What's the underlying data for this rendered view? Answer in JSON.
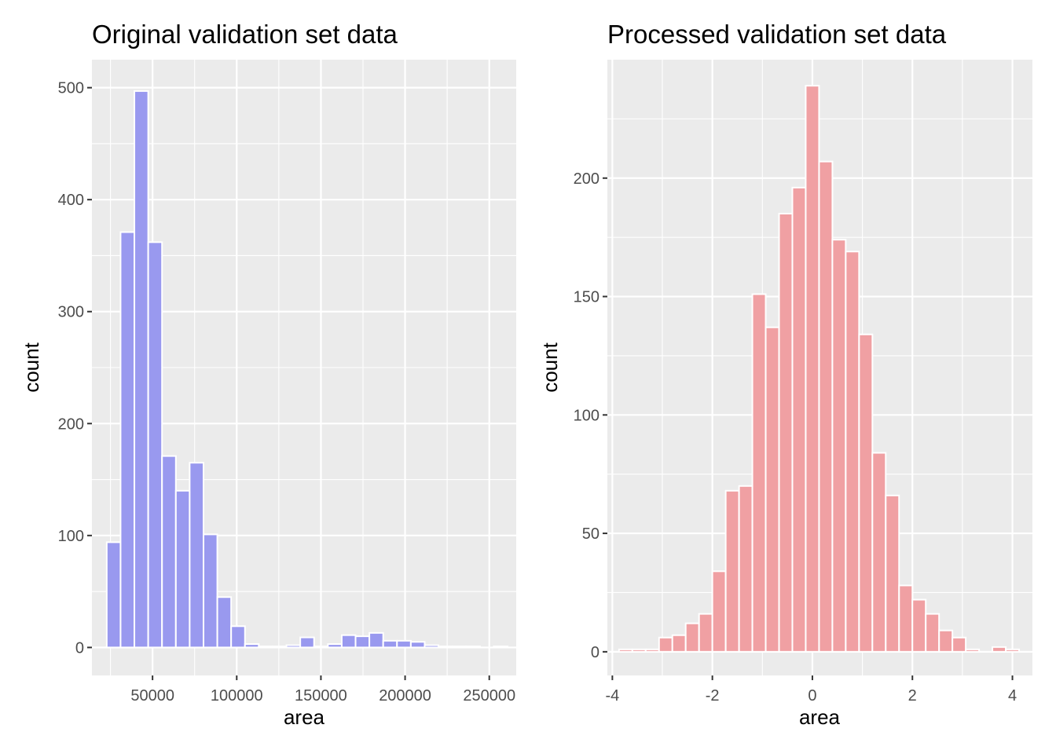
{
  "chart_data": [
    {
      "type": "bar",
      "title": "Original validation set data",
      "xlabel": "area",
      "ylabel": "count",
      "xlim": [
        14000,
        266000
      ],
      "ylim": [
        -25,
        525
      ],
      "xticks": [
        50000,
        100000,
        150000,
        200000,
        250000
      ],
      "xtick_labels": [
        "50000",
        "100000",
        "150000",
        "200000",
        "250000"
      ],
      "yticks": [
        0,
        100,
        200,
        300,
        400,
        500
      ],
      "ytick_labels": [
        "0",
        "100",
        "200",
        "300",
        "400",
        "500"
      ],
      "grid": true,
      "bar_color": "#9999ef",
      "bin_width": 8210,
      "bin_centers": [
        26900,
        35110,
        43320,
        51530,
        59740,
        67950,
        76160,
        84370,
        92580,
        100790,
        109000,
        117210,
        125420,
        133630,
        141840,
        150050,
        158260,
        166470,
        174680,
        182890,
        191100,
        199310,
        207520,
        215730,
        223940,
        232150,
        240360,
        248570,
        256780
      ],
      "values": [
        94,
        371,
        497,
        362,
        171,
        140,
        165,
        101,
        45,
        19,
        3,
        1,
        1,
        2,
        9,
        1,
        3,
        11,
        10,
        13,
        6,
        6,
        5,
        2,
        1,
        1,
        1,
        0,
        1
      ]
    },
    {
      "type": "bar",
      "title": "Processed validation set data",
      "xlabel": "area",
      "ylabel": "count",
      "xlim": [
        -4.1,
        4.4
      ],
      "ylim": [
        -10,
        250
      ],
      "xticks": [
        -4,
        -2,
        0,
        2,
        4
      ],
      "xtick_labels": [
        "-4",
        "-2",
        "0",
        "2",
        "4"
      ],
      "yticks": [
        0,
        50,
        100,
        150,
        200
      ],
      "ytick_labels": [
        "0",
        "50",
        "100",
        "150",
        "200"
      ],
      "grid": true,
      "bar_color": "#f0a0a3",
      "bin_width": 0.2667,
      "bin_centers": [
        -3.733,
        -3.467,
        -3.2,
        -2.933,
        -2.667,
        -2.4,
        -2.133,
        -1.867,
        -1.6,
        -1.333,
        -1.067,
        -0.8,
        -0.533,
        -0.267,
        0.0,
        0.267,
        0.533,
        0.8,
        1.067,
        1.333,
        1.6,
        1.867,
        2.133,
        2.4,
        2.667,
        2.933,
        3.2,
        3.467,
        3.733,
        4.0
      ],
      "values": [
        1,
        1,
        1,
        6,
        7,
        12,
        16,
        34,
        68,
        70,
        151,
        137,
        185,
        196,
        239,
        207,
        174,
        169,
        134,
        84,
        66,
        28,
        22,
        16,
        9,
        6,
        1,
        0,
        2,
        1
      ]
    }
  ]
}
